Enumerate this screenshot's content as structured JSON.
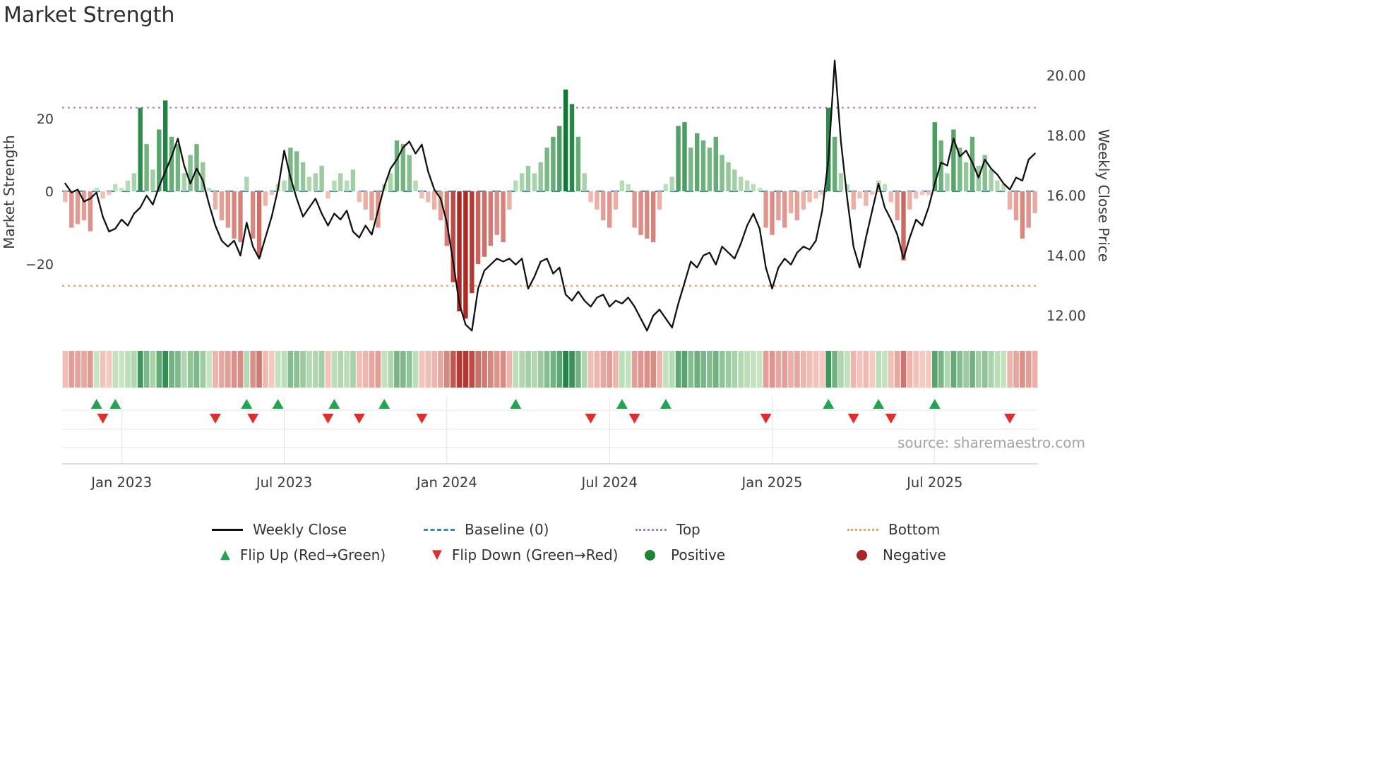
{
  "title": "Market Strength",
  "source": "source: sharemaestro.com",
  "axes": {
    "left_label": "Market Strength",
    "right_label": "Weekly Close Price",
    "left_ticks": [
      {
        "label": "20",
        "value": 20
      },
      {
        "label": "0",
        "value": 0
      },
      {
        "label": "−20",
        "value": -20
      }
    ],
    "right_ticks": [
      {
        "label": "20.00",
        "value": 20
      },
      {
        "label": "18.00",
        "value": 18
      },
      {
        "label": "16.00",
        "value": 16
      },
      {
        "label": "14.00",
        "value": 14
      },
      {
        "label": "12.00",
        "value": 12
      }
    ]
  },
  "legend": {
    "rows": [
      [
        {
          "name": "weekly-close",
          "label": "Weekly Close",
          "color": "#111111",
          "style": "solid"
        },
        {
          "name": "baseline",
          "label": "Baseline (0)",
          "color": "#3d87b0",
          "style": "dashed"
        },
        {
          "name": "top",
          "label": "Top",
          "color": "#a97ed2",
          "style": "dotted"
        },
        {
          "name": "bottom",
          "label": "Bottom",
          "color": "#f0a35e",
          "style": "dotted"
        }
      ],
      [
        {
          "name": "flip-up",
          "label": "Flip Up (Red→Green)",
          "color": "#23a455",
          "marker": "up"
        },
        {
          "name": "flip-down",
          "label": "Flip Down (Green→Red)",
          "color": "#e02d2d",
          "marker": "down"
        },
        {
          "name": "positive",
          "label": "Positive",
          "color": "#1d8533",
          "marker": "circle"
        },
        {
          "name": "negative",
          "label": "Negative",
          "color": "#a82525",
          "marker": "circle"
        }
      ]
    ]
  },
  "chart_data": {
    "type": "bar+line",
    "x_unit": "week",
    "x_ticks": [
      {
        "label": "Jan 2023",
        "week": 9
      },
      {
        "label": "Jul 2023",
        "week": 35
      },
      {
        "label": "Jan 2024",
        "week": 61
      },
      {
        "label": "Jul 2024",
        "week": 87
      },
      {
        "label": "Jan 2025",
        "week": 113
      },
      {
        "label": "Jul 2025",
        "week": 139
      }
    ],
    "baseline": 0,
    "top_threshold": 23,
    "bottom_threshold": -26,
    "left_axis_range": [
      -40,
      41
    ],
    "right_axis_range": [
      11.2,
      21.1
    ],
    "colors": {
      "baseline": "#3d87b0",
      "top": "#a97ed2",
      "bottom": "#f0a35e",
      "flip_up": "#23a455",
      "flip_down": "#e02d2d",
      "bar_green_light": "#c9e7c1",
      "bar_green_dark": "#0e7834",
      "bar_red_light": "#f7c8bf",
      "bar_red_dark": "#ac2822",
      "close_line": "#111111"
    },
    "series": [
      {
        "name": "Strength",
        "type": "bar",
        "axis": "left",
        "values": [
          -3,
          -10,
          -9,
          -8,
          -11,
          1,
          -2,
          -1,
          2,
          1,
          3,
          5,
          23,
          13,
          6,
          17,
          25,
          15,
          13,
          5,
          10,
          13,
          8,
          1,
          -5,
          -8,
          -10,
          -13,
          -14,
          4,
          -13,
          -18,
          -4,
          -1,
          2,
          3,
          12,
          11,
          8,
          4,
          5,
          7,
          -2,
          3,
          5,
          3,
          6,
          -3,
          -5,
          -8,
          -10,
          2,
          5,
          14,
          13,
          10,
          3,
          -2,
          -3,
          -5,
          -8,
          -15,
          -25,
          -33,
          -35,
          -28,
          -20,
          -18,
          -15,
          -12,
          -14,
          -5,
          3,
          5,
          7,
          5,
          8,
          12,
          15,
          18,
          28,
          24,
          15,
          5,
          -3,
          -5,
          -8,
          -10,
          -5,
          3,
          2,
          -10,
          -12,
          -13,
          -14,
          -5,
          2,
          4,
          18,
          19,
          12,
          16,
          14,
          12,
          15,
          10,
          8,
          6,
          4,
          3,
          2,
          1,
          -10,
          -12,
          -8,
          -10,
          -6,
          -8,
          -5,
          -3,
          -2,
          -1,
          23,
          15,
          5,
          2,
          -5,
          -2,
          -4,
          -1,
          3,
          2,
          -3,
          -8,
          -19,
          -5,
          -2,
          -1,
          -1,
          19,
          14,
          5,
          17,
          12,
          8,
          15,
          7,
          10,
          6,
          3,
          2,
          -5,
          -8,
          -13,
          -10,
          -6
        ]
      },
      {
        "name": "Weekly Close",
        "type": "line",
        "axis": "right",
        "values": [
          16.4,
          16.1,
          16.2,
          15.8,
          15.9,
          16.1,
          15.3,
          14.8,
          14.9,
          15.2,
          15.0,
          15.4,
          15.6,
          16.0,
          15.7,
          16.3,
          16.8,
          17.3,
          17.9,
          17.0,
          16.4,
          16.9,
          16.5,
          15.7,
          15.0,
          14.5,
          14.3,
          14.5,
          14.0,
          15.1,
          14.3,
          13.9,
          14.6,
          15.3,
          16.2,
          17.5,
          16.6,
          15.9,
          15.3,
          15.6,
          15.9,
          15.4,
          15.0,
          15.4,
          15.2,
          15.5,
          14.8,
          14.6,
          15.0,
          14.7,
          15.5,
          16.3,
          16.9,
          17.2,
          17.6,
          17.8,
          17.4,
          17.7,
          16.8,
          16.2,
          15.9,
          15.1,
          13.8,
          12.4,
          11.7,
          11.5,
          12.9,
          13.5,
          13.7,
          13.9,
          13.8,
          13.9,
          13.7,
          13.9,
          12.9,
          13.3,
          13.8,
          13.9,
          13.4,
          13.6,
          12.7,
          12.5,
          12.8,
          12.5,
          12.3,
          12.6,
          12.7,
          12.3,
          12.5,
          12.4,
          12.6,
          12.3,
          11.9,
          11.5,
          12.0,
          12.2,
          11.9,
          11.6,
          12.4,
          13.1,
          13.8,
          13.6,
          14.0,
          14.1,
          13.7,
          14.3,
          14.1,
          13.9,
          14.4,
          15.0,
          15.4,
          14.9,
          13.6,
          12.9,
          13.6,
          13.9,
          13.7,
          14.1,
          14.3,
          14.2,
          14.5,
          15.5,
          17.2,
          20.5,
          17.8,
          15.9,
          14.3,
          13.6,
          14.6,
          15.5,
          16.4,
          15.6,
          15.2,
          14.7,
          13.9,
          14.6,
          15.2,
          15.0,
          15.6,
          16.4,
          17.1,
          17.0,
          17.9,
          17.3,
          17.5,
          17.1,
          16.6,
          17.2,
          16.9,
          16.7,
          16.4,
          16.2,
          16.6,
          16.5,
          17.2,
          17.4
        ]
      }
    ],
    "heatmap_source": "Strength",
    "flip_up_weeks": [
      5,
      8,
      29,
      34,
      43,
      51,
      72,
      89,
      96,
      122,
      130,
      139
    ],
    "flip_down_weeks": [
      6,
      24,
      30,
      42,
      47,
      57,
      84,
      91,
      112,
      126,
      132,
      151
    ]
  }
}
